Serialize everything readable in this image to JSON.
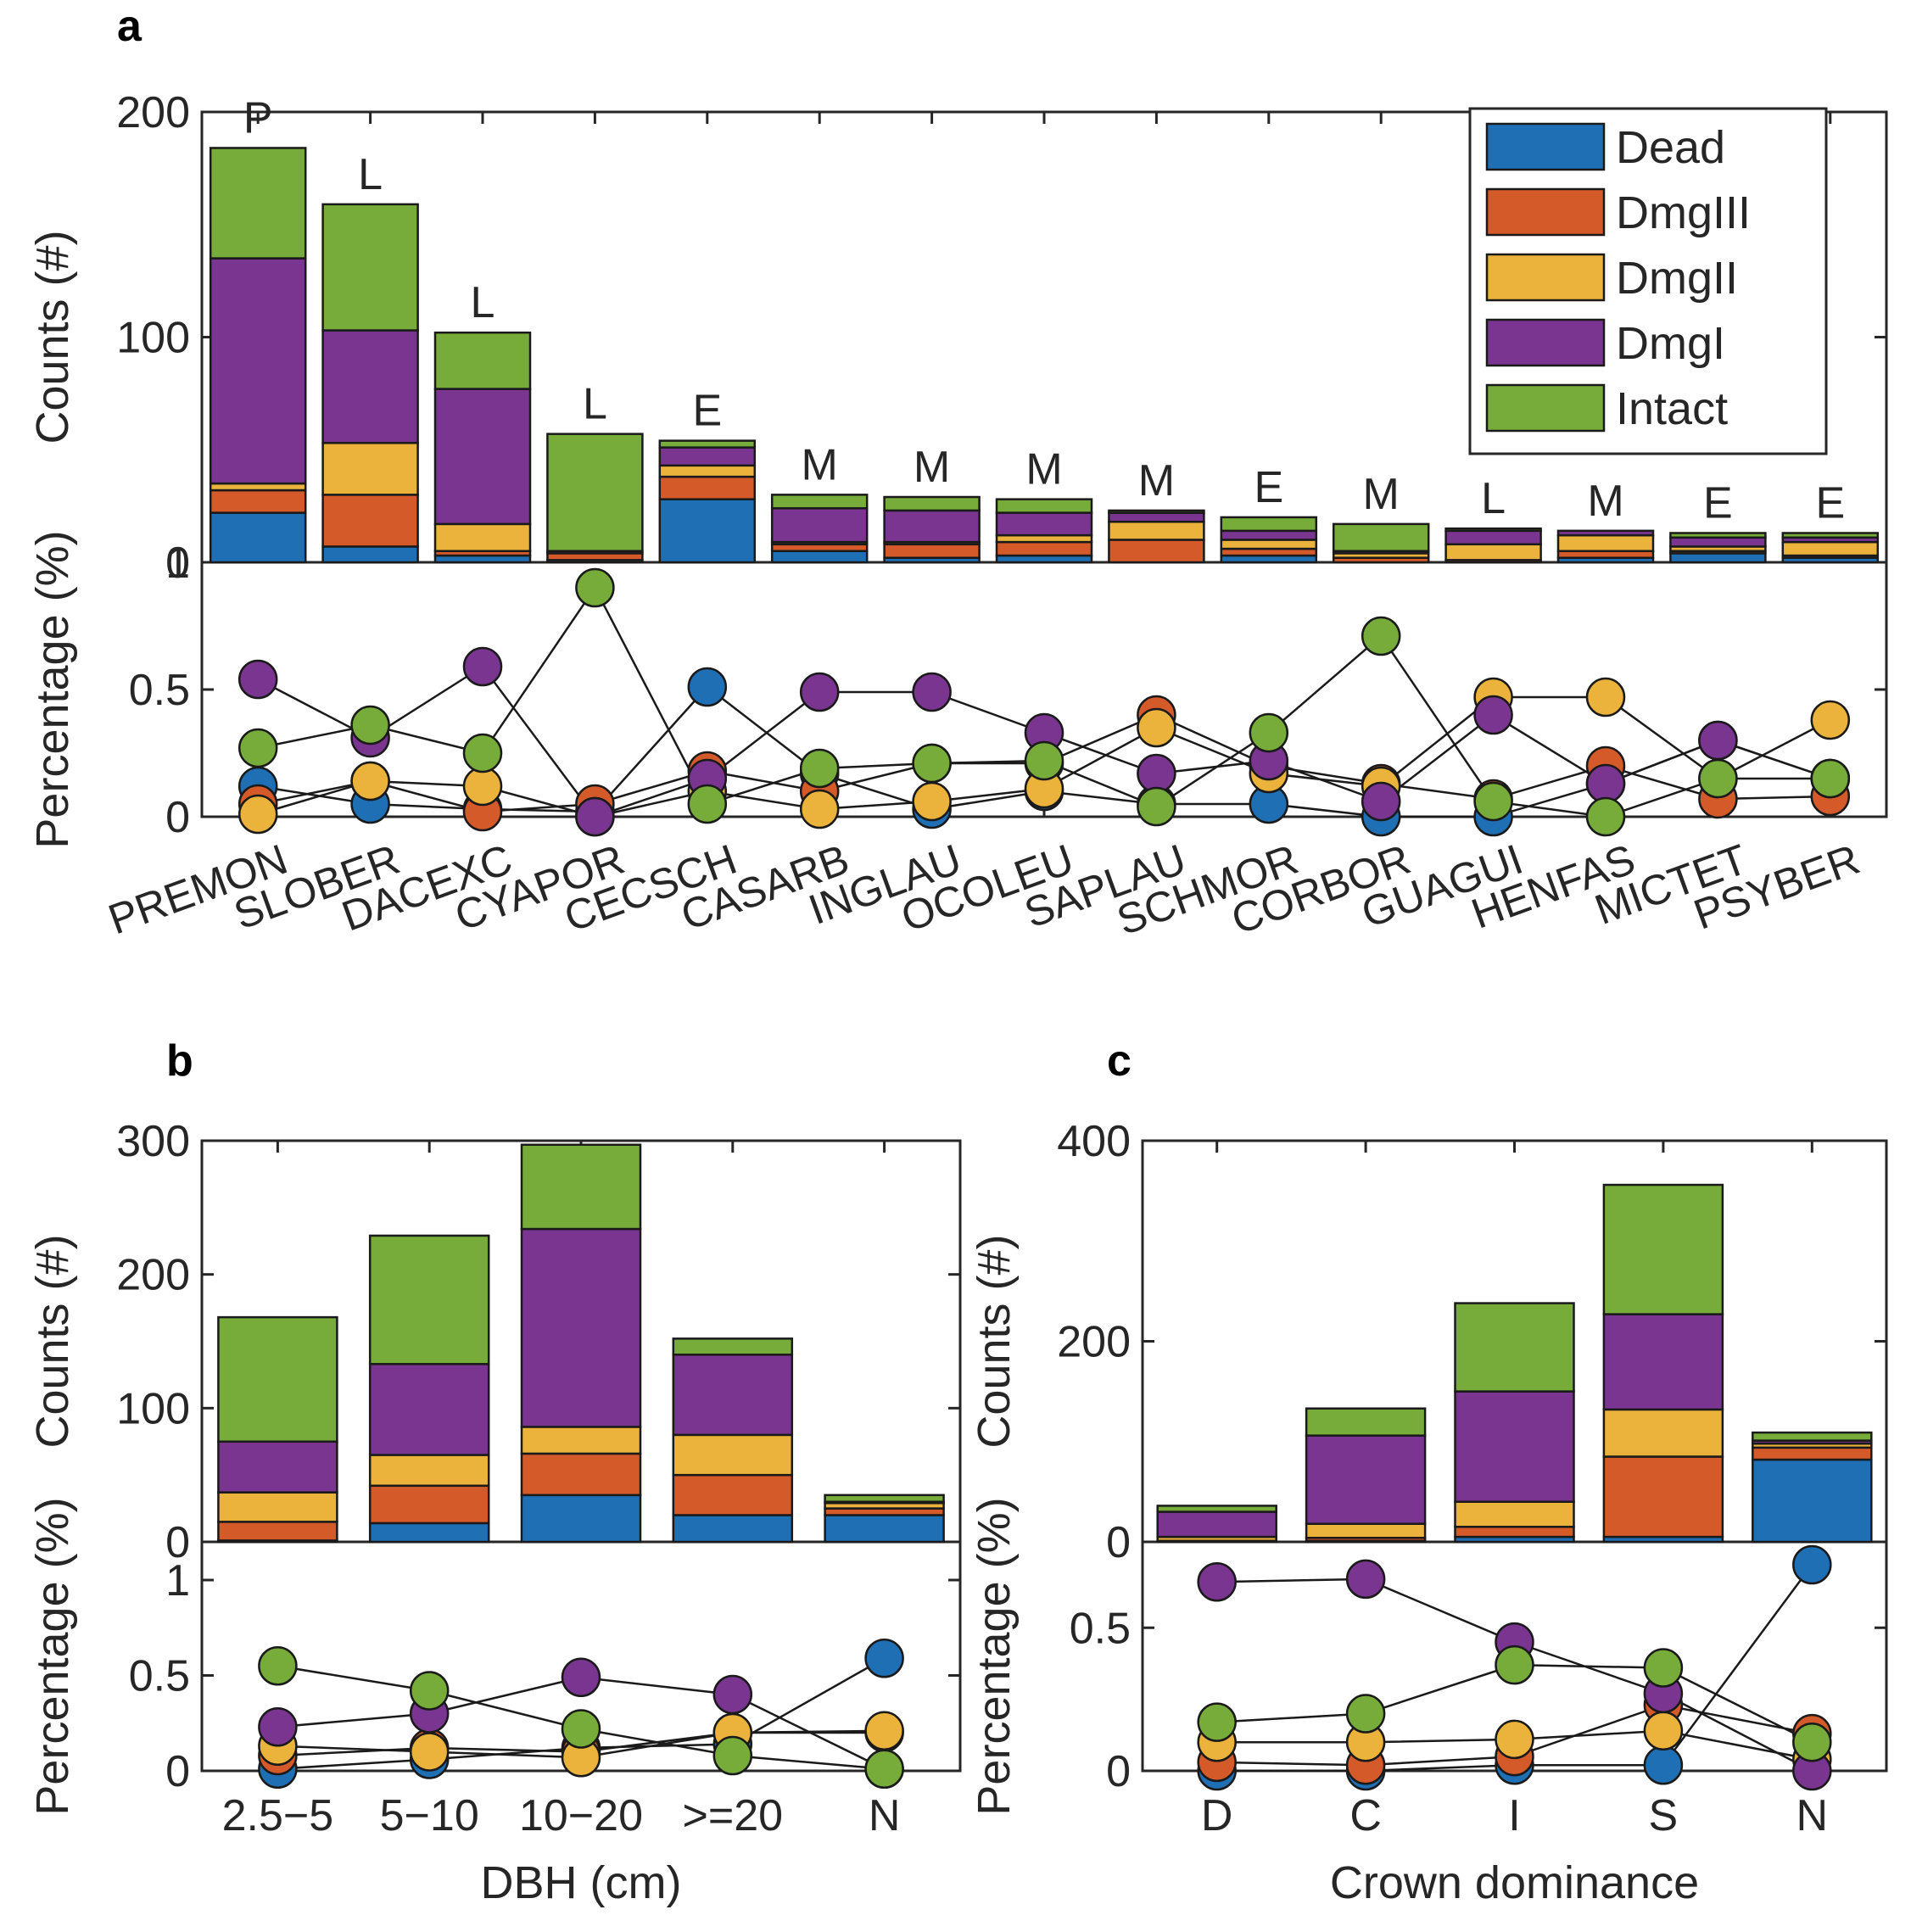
{
  "colors": {
    "Dead": "#1f6fb4",
    "DmgIII": "#d45a2a",
    "DmgII": "#ebb33b",
    "DmgI": "#7a3590",
    "Intact": "#77ac3a"
  },
  "chart_data": [
    {
      "panel": "a",
      "type": "bar",
      "stacked": true,
      "ylabel_top": "Counts (#)",
      "ylabel_bottom": "Percentage (%)",
      "ylim_top": [
        0,
        200
      ],
      "yticks_top": [
        "0",
        "100",
        "200"
      ],
      "ylim_bottom": [
        0,
        1
      ],
      "yticks_bottom": [
        "0",
        "0.5",
        "1"
      ],
      "legend": [
        "Dead",
        "DmgIII",
        "DmgII",
        "DmgI",
        "Intact"
      ],
      "legend_position": "top-right",
      "categories": [
        "PREMON",
        "SLOBER",
        "DACEXC",
        "CYAPOR",
        "CECSCH",
        "CASARB",
        "INGLAU",
        "OCOLEU",
        "SAPLAU",
        "SCHMOR",
        "CORBOR",
        "GUAGUI",
        "HENFAS",
        "MICTET",
        "PSYBER"
      ],
      "bar_letters": [
        "P",
        "L",
        "L",
        "L",
        "E",
        "M",
        "M",
        "M",
        "M",
        "E",
        "M",
        "L",
        "M",
        "E",
        "E"
      ],
      "series": [
        {
          "name": "Dead",
          "values": [
            22,
            7,
            3,
            1,
            28,
            5,
            2,
            3,
            0,
            3,
            0,
            0,
            2,
            4,
            2
          ]
        },
        {
          "name": "DmgIII",
          "values": [
            10,
            23,
            2,
            3,
            10,
            3,
            6,
            6,
            10,
            3,
            2,
            1,
            3,
            1,
            1
          ]
        },
        {
          "name": "DmgII",
          "values": [
            3,
            23,
            12,
            0,
            5,
            1,
            1,
            3,
            8,
            4,
            2,
            7,
            7,
            2,
            6
          ]
        },
        {
          "name": "DmgI",
          "values": [
            100,
            50,
            60,
            1,
            8,
            15,
            14,
            10,
            4,
            4,
            1,
            6,
            2,
            4,
            2
          ]
        },
        {
          "name": "Intact",
          "values": [
            49,
            56,
            25,
            52,
            3,
            6,
            6,
            6,
            1,
            6,
            12,
            1,
            0,
            2,
            2
          ]
        }
      ],
      "percentages": [
        {
          "name": "Dead",
          "values": [
            0.12,
            0.05,
            0.03,
            0.02,
            0.51,
            0.17,
            0.03,
            0.1,
            0.05,
            0.05,
            0.0,
            0.0,
            0.13,
            0.3,
            0.15
          ]
        },
        {
          "name": "DmgIII",
          "values": [
            0.05,
            0.14,
            0.02,
            0.05,
            0.18,
            0.1,
            0.21,
            0.21,
            0.4,
            0.2,
            0.13,
            0.07,
            0.2,
            0.07,
            0.08
          ]
        },
        {
          "name": "DmgII",
          "values": [
            0.01,
            0.14,
            0.12,
            0.0,
            0.1,
            0.03,
            0.06,
            0.11,
            0.35,
            0.17,
            0.12,
            0.47,
            0.47,
            0.15,
            0.38
          ]
        },
        {
          "name": "DmgI",
          "values": [
            0.54,
            0.31,
            0.59,
            0.0,
            0.15,
            0.49,
            0.49,
            0.33,
            0.17,
            0.22,
            0.06,
            0.4,
            0.13,
            0.3,
            0.15
          ]
        },
        {
          "name": "Intact",
          "values": [
            0.27,
            0.36,
            0.25,
            0.9,
            0.05,
            0.19,
            0.21,
            0.22,
            0.04,
            0.33,
            0.71,
            0.06,
            0.0,
            0.15,
            0.15
          ]
        }
      ]
    },
    {
      "panel": "b",
      "type": "bar",
      "stacked": true,
      "xlabel": "DBH (cm)",
      "ylabel_top": "Counts (#)",
      "ylabel_bottom": "Percentage (%)",
      "ylim_top": [
        0,
        300
      ],
      "yticks_top": [
        "0",
        "100",
        "200",
        "300"
      ],
      "ylim_bottom": [
        0,
        1.2
      ],
      "yticks_bottom": [
        "0",
        "0.5",
        "1"
      ],
      "categories": [
        "2.5−5",
        "5−10",
        "10−20",
        ">=20",
        "N"
      ],
      "series": [
        {
          "name": "Dead",
          "values": [
            1,
            14,
            35,
            20,
            20
          ]
        },
        {
          "name": "DmgIII",
          "values": [
            14,
            28,
            31,
            30,
            5
          ]
        },
        {
          "name": "DmgII",
          "values": [
            22,
            23,
            20,
            30,
            4
          ]
        },
        {
          "name": "DmgI",
          "values": [
            38,
            68,
            148,
            60,
            1
          ]
        },
        {
          "name": "Intact",
          "values": [
            93,
            96,
            63,
            12,
            5
          ]
        }
      ],
      "percentages": [
        {
          "name": "Dead",
          "values": [
            0.01,
            0.06,
            0.12,
            0.14,
            0.59
          ]
        },
        {
          "name": "DmgIII",
          "values": [
            0.08,
            0.12,
            0.1,
            0.2,
            0.2
          ]
        },
        {
          "name": "DmgII",
          "values": [
            0.13,
            0.1,
            0.07,
            0.2,
            0.21
          ]
        },
        {
          "name": "DmgI",
          "values": [
            0.23,
            0.3,
            0.49,
            0.4,
            0.01
          ]
        },
        {
          "name": "Intact",
          "values": [
            0.55,
            0.42,
            0.22,
            0.08,
            0.01
          ]
        }
      ]
    },
    {
      "panel": "c",
      "type": "bar",
      "stacked": true,
      "xlabel": "Crown dominance",
      "ylabel_top": "Counts (#)",
      "ylabel_bottom": "Percentage (%)",
      "ylim_top": [
        0,
        400
      ],
      "yticks_top": [
        "0",
        "200",
        "400"
      ],
      "ylim_bottom": [
        0,
        0.8
      ],
      "yticks_bottom": [
        "0",
        "0.5"
      ],
      "categories": [
        "D",
        "C",
        "I",
        "S",
        "N"
      ],
      "series": [
        {
          "name": "Dead",
          "values": [
            0,
            1,
            5,
            5,
            82
          ]
        },
        {
          "name": "DmgIII",
          "values": [
            1,
            3,
            10,
            80,
            12
          ]
        },
        {
          "name": "DmgII",
          "values": [
            4,
            14,
            25,
            47,
            4
          ]
        },
        {
          "name": "DmgI",
          "values": [
            25,
            88,
            110,
            95,
            3
          ]
        },
        {
          "name": "Intact",
          "values": [
            6,
            27,
            88,
            129,
            8
          ]
        }
      ],
      "percentages": [
        {
          "name": "Dead",
          "values": [
            0.0,
            0.0,
            0.02,
            0.02,
            0.72
          ]
        },
        {
          "name": "DmgIII",
          "values": [
            0.03,
            0.02,
            0.05,
            0.23,
            0.13
          ]
        },
        {
          "name": "DmgII",
          "values": [
            0.1,
            0.1,
            0.11,
            0.14,
            0.04
          ]
        },
        {
          "name": "DmgI",
          "values": [
            0.66,
            0.67,
            0.45,
            0.27,
            0.0
          ]
        },
        {
          "name": "Intact",
          "values": [
            0.17,
            0.2,
            0.37,
            0.36,
            0.1
          ]
        }
      ]
    }
  ]
}
